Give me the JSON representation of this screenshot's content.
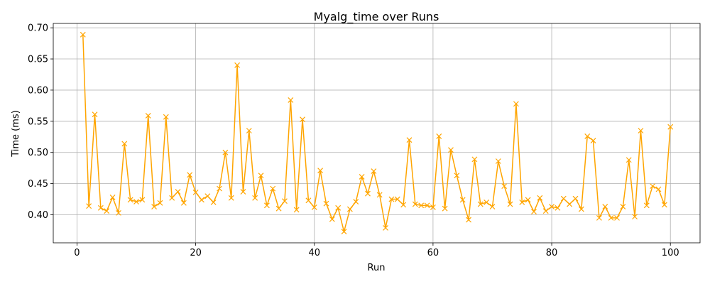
{
  "chart_data": {
    "type": "line",
    "title": "Myalg_time over Runs",
    "xlabel": "Run",
    "ylabel": "Time (ms)",
    "xlim": [
      -4,
      105
    ],
    "ylim": [
      0.355,
      0.707
    ],
    "x_ticks": [
      0,
      20,
      40,
      60,
      80,
      100
    ],
    "y_ticks": [
      0.4,
      0.45,
      0.5,
      0.55,
      0.6,
      0.65,
      0.7
    ],
    "y_tick_labels": [
      "0.40",
      "0.45",
      "0.50",
      "0.55",
      "0.60",
      "0.65",
      "0.70"
    ],
    "grid": true,
    "marker": "x",
    "color": "#FFA500",
    "series": [
      {
        "x": [
          1,
          2,
          3,
          4,
          5,
          6,
          7,
          8,
          9,
          10,
          11,
          12,
          13,
          14,
          15,
          16,
          17,
          18,
          19,
          20,
          21,
          22,
          23,
          24,
          25,
          26,
          27,
          28,
          29,
          30,
          31,
          32,
          33,
          34,
          35,
          36,
          37,
          38,
          39,
          40,
          41,
          42,
          43,
          44,
          45,
          46,
          47,
          48,
          49,
          50,
          51,
          52,
          53,
          54,
          55,
          56,
          57,
          58,
          59,
          60,
          61,
          62,
          63,
          64,
          65,
          66,
          67,
          68,
          69,
          70,
          71,
          72,
          73,
          74,
          75,
          76,
          77,
          78,
          79,
          80,
          81,
          82,
          83,
          84,
          85,
          86,
          87,
          88,
          89,
          90,
          91,
          92,
          93,
          94,
          95,
          96,
          97,
          98,
          99,
          100
        ],
        "values": [
          0.689,
          0.414,
          0.561,
          0.411,
          0.406,
          0.428,
          0.403,
          0.514,
          0.424,
          0.421,
          0.424,
          0.559,
          0.413,
          0.419,
          0.557,
          0.427,
          0.437,
          0.419,
          0.464,
          0.436,
          0.424,
          0.43,
          0.42,
          0.442,
          0.5,
          0.427,
          0.64,
          0.437,
          0.535,
          0.427,
          0.463,
          0.415,
          0.442,
          0.41,
          0.422,
          0.584,
          0.408,
          0.553,
          0.423,
          0.412,
          0.471,
          0.418,
          0.393,
          0.411,
          0.373,
          0.409,
          0.421,
          0.461,
          0.434,
          0.47,
          0.432,
          0.379,
          0.425,
          0.425,
          0.416,
          0.52,
          0.417,
          0.415,
          0.415,
          0.412,
          0.526,
          0.41,
          0.504,
          0.463,
          0.424,
          0.392,
          0.489,
          0.417,
          0.42,
          0.413,
          0.486,
          0.446,
          0.417,
          0.578,
          0.42,
          0.424,
          0.405,
          0.427,
          0.406,
          0.413,
          0.411,
          0.426,
          0.417,
          0.426,
          0.409,
          0.526,
          0.519,
          0.395,
          0.413,
          0.395,
          0.395,
          0.413,
          0.488,
          0.397,
          0.535,
          0.415,
          0.446,
          0.441,
          0.416,
          0.541
        ]
      }
    ]
  }
}
